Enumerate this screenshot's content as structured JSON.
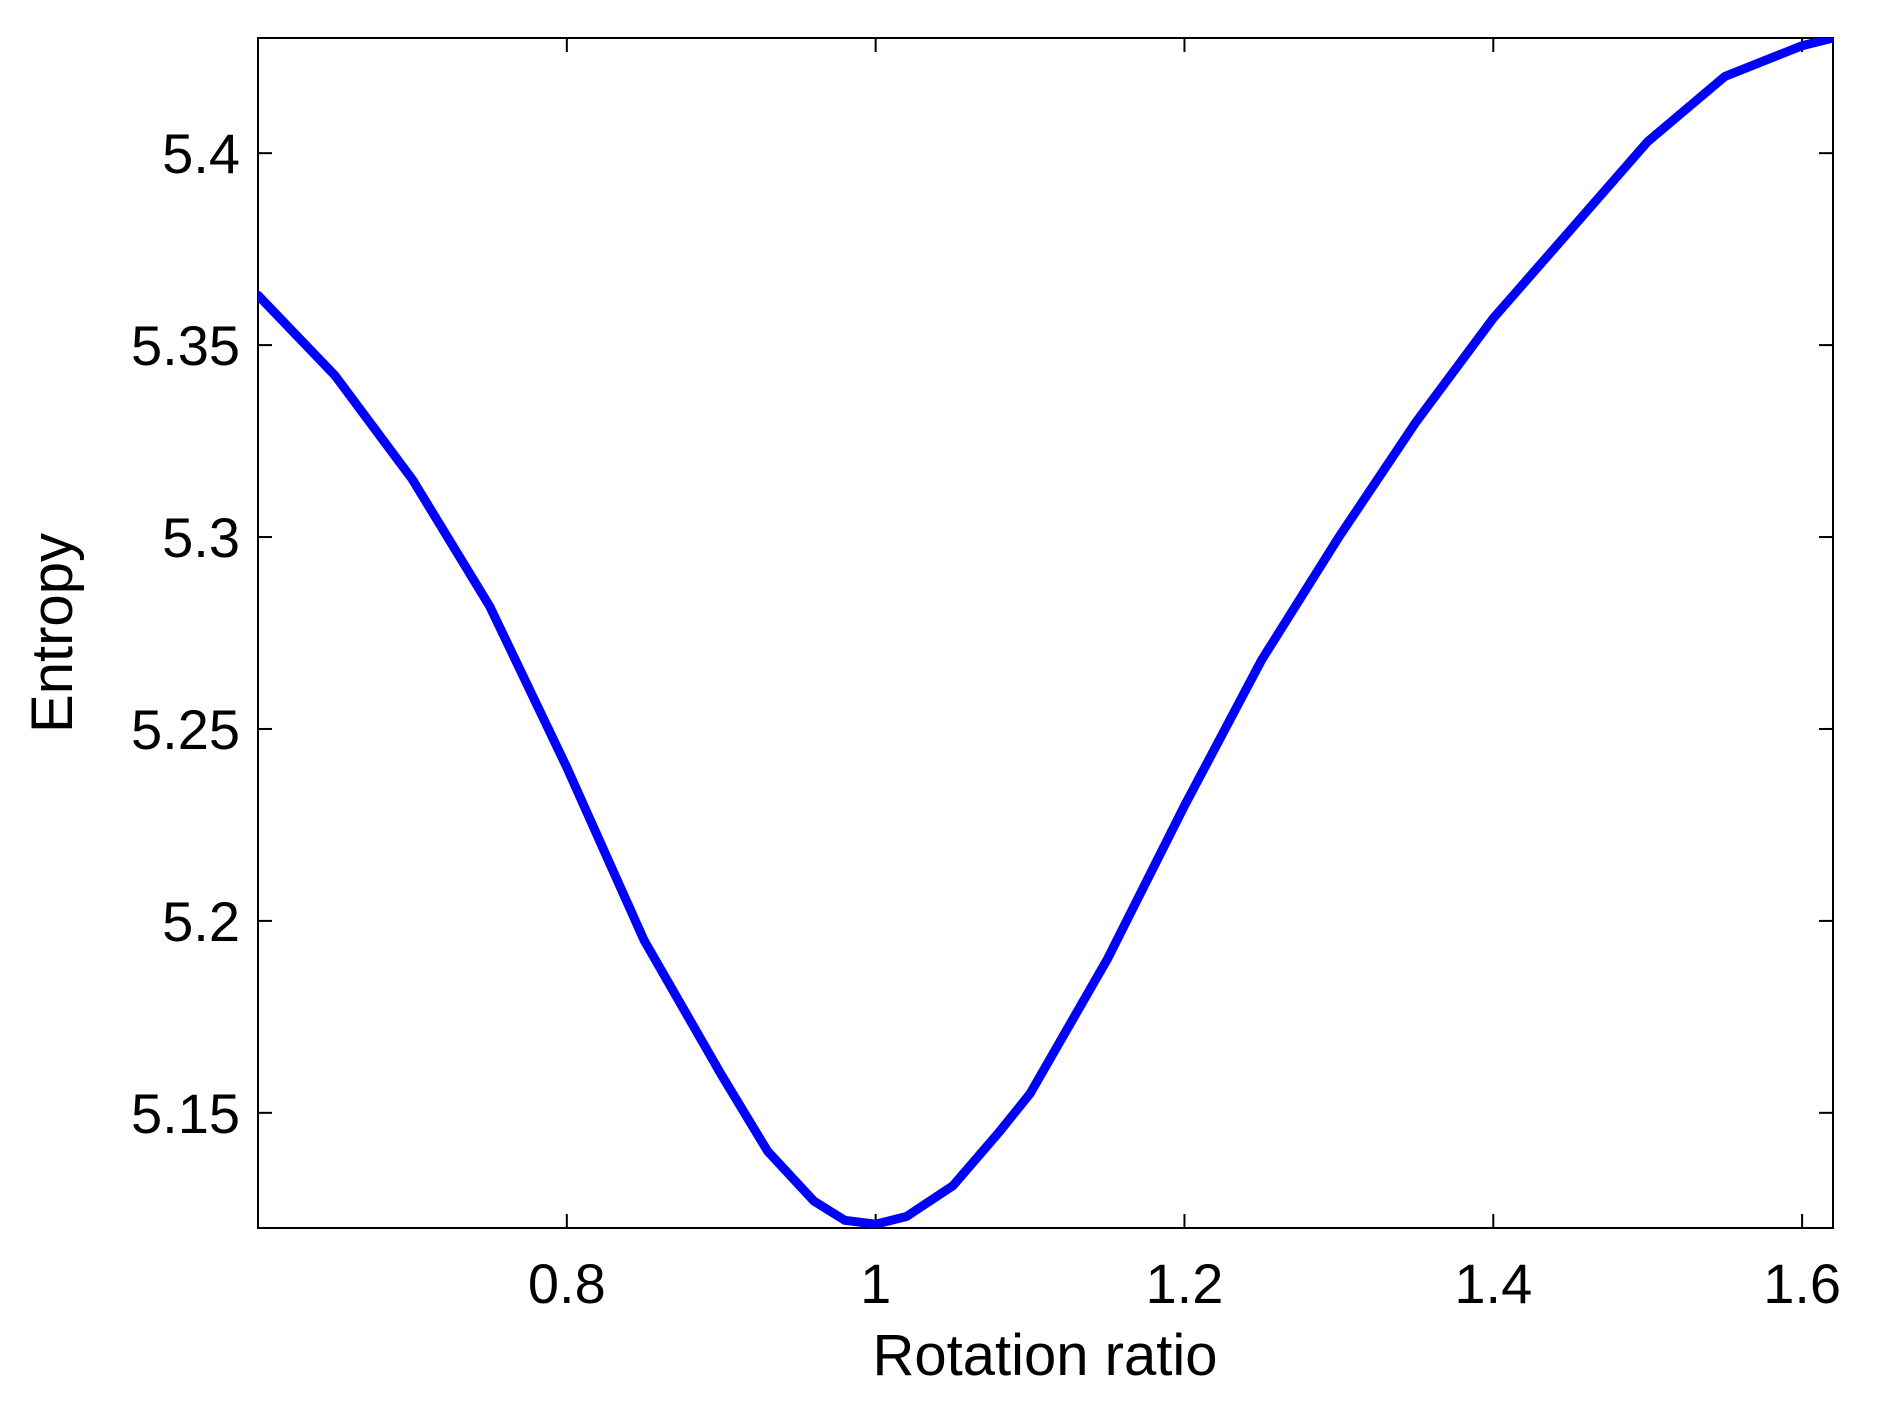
{
  "chart_data": {
    "type": "line",
    "title": "",
    "xlabel": "Rotation ratio",
    "ylabel": "Entropy",
    "xlim": [
      0.6,
      1.62
    ],
    "ylim": [
      5.12,
      5.43
    ],
    "xticks": [
      0.8,
      1.0,
      1.2,
      1.4,
      1.6
    ],
    "xtick_labels": [
      "0.8",
      "1",
      "1.2",
      "1.4",
      "1.6"
    ],
    "yticks": [
      5.15,
      5.2,
      5.25,
      5.3,
      5.35,
      5.4
    ],
    "ytick_labels": [
      "5.15",
      "5.2",
      "5.25",
      "5.3",
      "5.35",
      "5.4"
    ],
    "grid": false,
    "legend": "none",
    "colors": {
      "line": "#0000ff",
      "axes": "#000000",
      "background": "#ffffff"
    },
    "series": [
      {
        "x": [
          0.6,
          0.65,
          0.7,
          0.75,
          0.8,
          0.85,
          0.9,
          0.93,
          0.96,
          0.98,
          1.0,
          1.02,
          1.05,
          1.08,
          1.1,
          1.15,
          1.2,
          1.25,
          1.3,
          1.35,
          1.4,
          1.45,
          1.5,
          1.55,
          1.6,
          1.62
        ],
        "y": [
          5.363,
          5.342,
          5.315,
          5.282,
          5.24,
          5.195,
          5.16,
          5.14,
          5.127,
          5.122,
          5.121,
          5.123,
          5.131,
          5.145,
          5.155,
          5.19,
          5.23,
          5.268,
          5.3,
          5.33,
          5.357,
          5.38,
          5.403,
          5.42,
          5.428,
          5.43
        ]
      }
    ]
  }
}
